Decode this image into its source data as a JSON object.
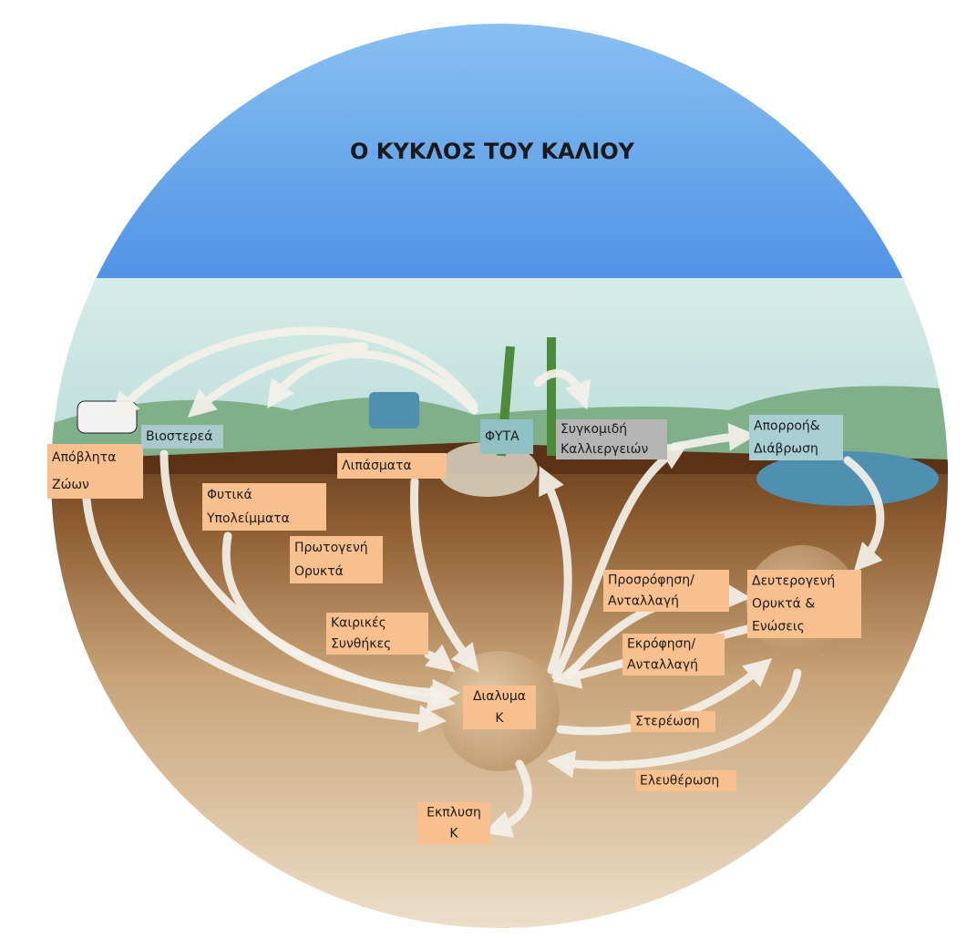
{
  "title": "Ο ΚΥΚΛΟΣ ΤΟΥ ΚΑΛΙΟΥ",
  "labels": [
    {
      "lines": [
        "Απόβλητα",
        "Ζώων"
      ]
    },
    {
      "lines": [
        "Βιοστερεά"
      ]
    },
    {
      "lines": [
        "Φυτικά",
        "Υπολείμματα"
      ]
    },
    {
      "lines": [
        "Λιπάσματα"
      ]
    },
    {
      "lines": [
        "ΦΥΤΑ"
      ]
    },
    {
      "lines": [
        "Συγκομιδή",
        "Καλλιεργειών"
      ]
    },
    {
      "lines": [
        "Απορροή&",
        "Διάβρωση"
      ]
    },
    {
      "lines": [
        "Πρωτογενή",
        "Ορυκτά"
      ]
    },
    {
      "lines": [
        "Καιρικές",
        "Συνθήκες"
      ]
    },
    {
      "lines": [
        "Προσρόφηση/",
        "Ανταλλαγή"
      ]
    },
    {
      "lines": [
        "Δευτερογενή",
        "Ορυκτά &",
        "Ενώσεις"
      ]
    },
    {
      "lines": [
        "Εκρόφηση/",
        "Ανταλλαγή"
      ]
    },
    {
      "lines": [
        "Διαλυμα",
        "Κ"
      ]
    },
    {
      "lines": [
        "Στερέωση"
      ]
    },
    {
      "lines": [
        "Ελευθέρωση"
      ]
    },
    {
      "lines": [
        "Εκπλυση",
        "Κ"
      ]
    }
  ]
}
